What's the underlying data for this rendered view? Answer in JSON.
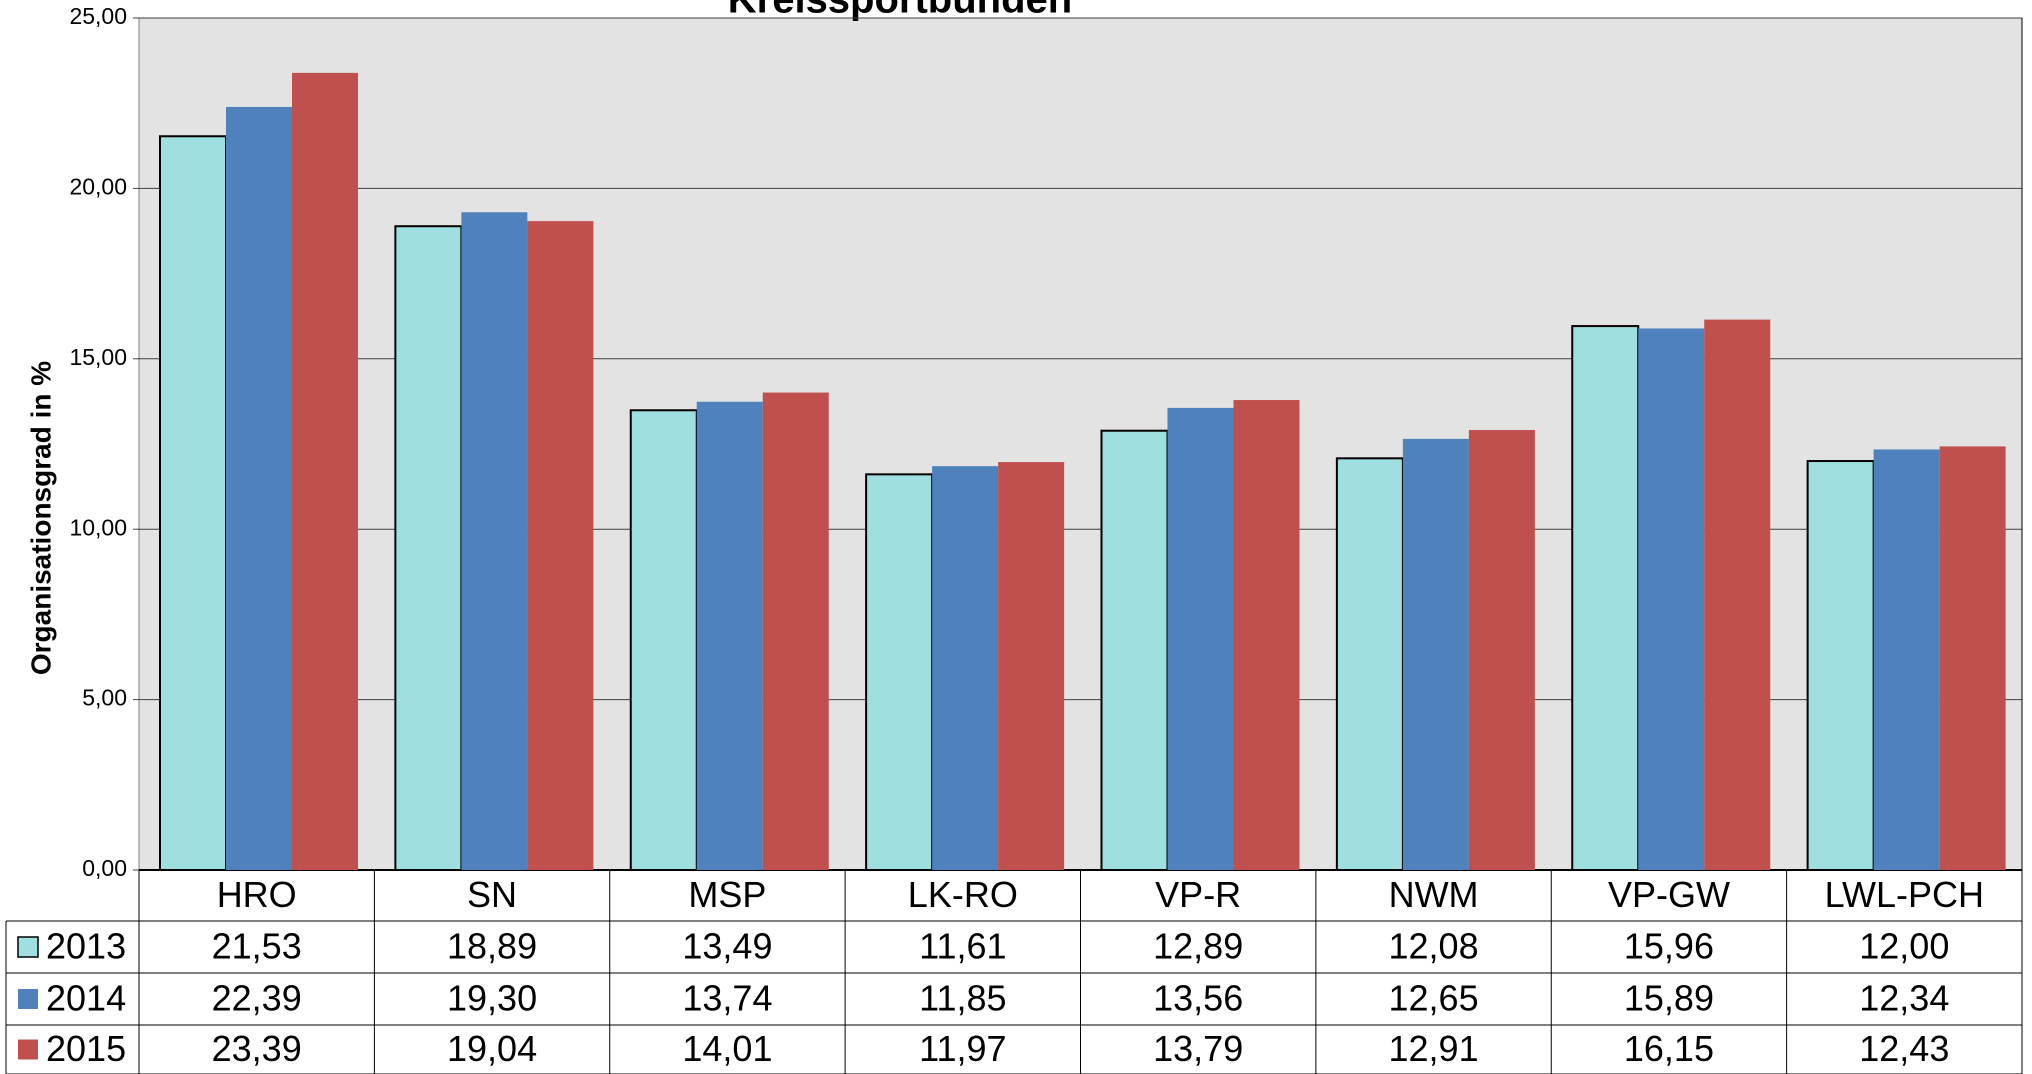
{
  "chart_data": {
    "type": "bar",
    "title": "Kreissportbünden",
    "y_label": "Organisationsgrad in %",
    "categories": [
      "HRO",
      "SN",
      "MSP",
      "LK-RO",
      "VP-R",
      "NWM",
      "VP-GW",
      "LWL-PCH"
    ],
    "series": [
      {
        "name": "2013",
        "color": "#a0dfe0",
        "values": [
          21.53,
          18.89,
          13.49,
          11.61,
          12.89,
          12.08,
          15.96,
          12.0
        ],
        "value_labels": [
          "21,53",
          "18,89",
          "13,49",
          "11,61",
          "12,89",
          "12,08",
          "15,96",
          "12,00"
        ]
      },
      {
        "name": "2014",
        "color": "#4f81bd",
        "values": [
          22.39,
          19.3,
          13.74,
          11.85,
          13.56,
          12.65,
          15.89,
          12.34
        ],
        "value_labels": [
          "22,39",
          "19,30",
          "13,74",
          "11,85",
          "13,56",
          "12,65",
          "15,89",
          "12,34"
        ]
      },
      {
        "name": "2015",
        "color": "#c0504d",
        "values": [
          23.39,
          19.04,
          14.01,
          11.97,
          13.79,
          12.91,
          16.15,
          12.43
        ],
        "value_labels": [
          "23,39",
          "19,04",
          "14,01",
          "11,97",
          "13,79",
          "12,91",
          "16,15",
          "12,43"
        ]
      }
    ],
    "ylim": [
      0,
      25
    ],
    "yticks": [
      {
        "value": 0,
        "label": "0,00"
      },
      {
        "value": 5,
        "label": "5,00"
      },
      {
        "value": 10,
        "label": "10,00"
      },
      {
        "value": 15,
        "label": "15,00"
      },
      {
        "value": 20,
        "label": "20,00"
      },
      {
        "value": 25,
        "label": "25,00"
      }
    ],
    "grid": true
  }
}
